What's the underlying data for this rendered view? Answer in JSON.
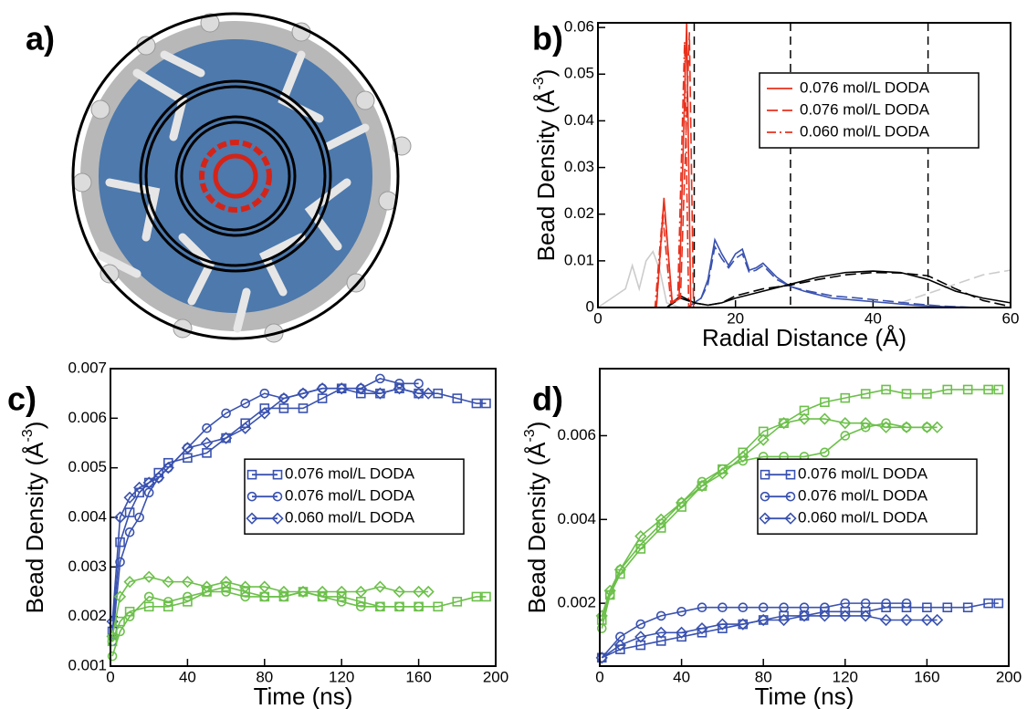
{
  "image_panel": {
    "label": "a)"
  },
  "chart_data": [
    {
      "type": "line",
      "label": "b)",
      "xlabel": "Radial Distance (Å)",
      "ylabel": [
        "Bead Density (Å",
        "-3",
        ")"
      ],
      "xlim": [
        0,
        60
      ],
      "ylim": [
        0,
        0.061
      ],
      "xticks": [
        0,
        20,
        40,
        60
      ],
      "yticks": [
        0,
        0.01,
        0.02,
        0.03,
        0.04,
        0.05,
        0.06
      ],
      "vlines": [
        14,
        28,
        48
      ],
      "legend": "upper right",
      "series": [
        {
          "color": "#cccccc",
          "dash": "solid",
          "x": [
            0,
            2,
            4,
            5,
            6,
            7,
            8,
            9,
            10,
            12
          ],
          "values": [
            0,
            0.002,
            0.004,
            0.009,
            0.004,
            0.01,
            0.012,
            0.008,
            0.001,
            0
          ]
        },
        {
          "color": "#cccccc",
          "dash": "dashed",
          "x": [
            44,
            48,
            52,
            56,
            60
          ],
          "values": [
            0.001,
            0.003,
            0.005,
            0.007,
            0.008
          ]
        },
        {
          "color": "#3a52b0",
          "dash": "solid",
          "x": [
            13,
            14,
            15,
            16,
            17,
            18,
            19,
            20,
            21,
            22,
            23,
            24,
            26,
            28,
            30,
            34,
            38,
            42,
            46,
            50,
            55,
            60
          ],
          "values": [
            0,
            0.001,
            0.002,
            0.006,
            0.0145,
            0.0115,
            0.009,
            0.0115,
            0.0125,
            0.008,
            0.0085,
            0.0095,
            0.0065,
            0.0045,
            0.0035,
            0.002,
            0.0015,
            0.001,
            0.0005,
            0.0002,
            0,
            0
          ]
        },
        {
          "color": "#3a52b0",
          "dash": "dashed",
          "x": [
            13,
            14,
            15,
            16,
            17,
            18,
            19,
            20,
            21,
            22,
            23,
            24,
            26,
            28,
            30,
            34,
            38,
            42,
            46,
            50,
            55,
            60
          ],
          "values": [
            0,
            0.001,
            0.002,
            0.005,
            0.013,
            0.0105,
            0.0085,
            0.0105,
            0.0115,
            0.0075,
            0.008,
            0.009,
            0.006,
            0.0045,
            0.0037,
            0.0025,
            0.002,
            0.0014,
            0.0008,
            0.0003,
            0,
            0
          ]
        },
        {
          "color": "#000000",
          "dash": "solid",
          "x": [
            10,
            12,
            14,
            16,
            18,
            20,
            24,
            28,
            32,
            36,
            40,
            44,
            48,
            52,
            56,
            60
          ],
          "values": [
            0,
            0.0025,
            0.001,
            0.0005,
            0.001,
            0.002,
            0.0035,
            0.005,
            0.0065,
            0.0075,
            0.0078,
            0.0075,
            0.006,
            0.0035,
            0.002,
            0.001
          ]
        },
        {
          "color": "#000000",
          "dash": "dashed",
          "x": [
            10,
            12,
            14,
            16,
            18,
            20,
            24,
            28,
            32,
            36,
            40,
            44,
            48,
            52,
            56,
            60
          ],
          "values": [
            0,
            0.002,
            0.001,
            0.0005,
            0.001,
            0.0025,
            0.004,
            0.0048,
            0.006,
            0.007,
            0.0075,
            0.0074,
            0.0068,
            0.004,
            0.0015,
            0.0002
          ]
        },
        {
          "name": "0.076 mol/L DODA",
          "color": "#e8301c",
          "dash": "solid",
          "x": [
            0,
            8.5,
            9.6,
            10.8,
            11.8,
            12.9,
            13.5,
            14.5,
            60
          ],
          "values": [
            0,
            0,
            0.0235,
            0.001,
            0.002,
            0.061,
            0,
            0,
            0
          ]
        },
        {
          "name": "0.076 mol/L DODA",
          "color": "#e8301c",
          "dash": "dashed",
          "x": [
            0,
            8.5,
            9.6,
            10.8,
            12,
            13.3,
            13.9,
            15,
            60
          ],
          "values": [
            0,
            0,
            0.022,
            0.001,
            0.002,
            0.059,
            0,
            0,
            0
          ]
        },
        {
          "name": "0.060 mol/L DODA",
          "color": "#e8301c",
          "dash": "dashdot",
          "x": [
            0,
            8.3,
            9.4,
            10.6,
            11.6,
            12.6,
            13.2,
            14.2,
            60
          ],
          "values": [
            0,
            0,
            0.02,
            0.001,
            0.002,
            0.057,
            0,
            0,
            0
          ]
        }
      ]
    },
    {
      "type": "line",
      "label": "c)",
      "xlabel": "Time (ns)",
      "ylabel": [
        "Bead Density (Å",
        "-3",
        ")"
      ],
      "xlim": [
        0,
        200
      ],
      "ylim": [
        0.001,
        0.007
      ],
      "xticks": [
        0,
        40,
        80,
        120,
        160,
        200
      ],
      "yticks": [
        0.001,
        0.002,
        0.003,
        0.004,
        0.005,
        0.006,
        0.007
      ],
      "legend": "center right",
      "series": [
        {
          "name": "0.076 mol/L DODA",
          "color": "#3a52b0",
          "marker": "square",
          "x": [
            1,
            5,
            10,
            15,
            20,
            25,
            30,
            40,
            50,
            60,
            70,
            80,
            90,
            100,
            110,
            120,
            130,
            140,
            150,
            160,
            170,
            180,
            190,
            195
          ],
          "values": [
            0.0017,
            0.0035,
            0.0041,
            0.0045,
            0.0047,
            0.0049,
            0.0051,
            0.0052,
            0.0053,
            0.0056,
            0.0059,
            0.0062,
            0.0062,
            0.0062,
            0.0064,
            0.0066,
            0.0065,
            0.0065,
            0.0066,
            0.0065,
            0.0065,
            0.0064,
            0.0063,
            0.0063
          ]
        },
        {
          "name": "0.076 mol/L DODA",
          "color": "#3a52b0",
          "marker": "circle",
          "x": [
            1,
            5,
            10,
            15,
            20,
            25,
            30,
            40,
            50,
            60,
            70,
            80,
            90,
            100,
            110,
            120,
            130,
            140,
            150,
            160
          ],
          "values": [
            0.0015,
            0.0031,
            0.0037,
            0.004,
            0.0045,
            0.0048,
            0.005,
            0.0054,
            0.0058,
            0.0061,
            0.0063,
            0.0065,
            0.0064,
            0.0065,
            0.0066,
            0.0066,
            0.0066,
            0.0068,
            0.0067,
            0.0067
          ]
        },
        {
          "name": "0.060 mol/L DODA",
          "color": "#3a52b0",
          "marker": "diamond",
          "x": [
            1,
            5,
            10,
            15,
            20,
            25,
            30,
            40,
            50,
            60,
            70,
            80,
            90,
            100,
            110,
            120,
            130,
            140,
            150,
            160,
            165
          ],
          "values": [
            0.0019,
            0.004,
            0.0044,
            0.0046,
            0.0047,
            0.0048,
            0.005,
            0.0054,
            0.0055,
            0.0056,
            0.0058,
            0.0061,
            0.0064,
            0.0065,
            0.0066,
            0.0066,
            0.0066,
            0.0065,
            0.0066,
            0.0065,
            0.0065
          ]
        },
        {
          "color": "#6cc04a",
          "marker": "square",
          "x": [
            1,
            5,
            10,
            20,
            30,
            40,
            50,
            60,
            70,
            80,
            90,
            100,
            110,
            120,
            130,
            140,
            150,
            160,
            170,
            180,
            190,
            195
          ],
          "values": [
            0.0015,
            0.0019,
            0.0021,
            0.0022,
            0.0022,
            0.0023,
            0.0025,
            0.0026,
            0.0025,
            0.0024,
            0.0024,
            0.0025,
            0.0024,
            0.0024,
            0.0023,
            0.0022,
            0.0022,
            0.0022,
            0.0022,
            0.0023,
            0.0024,
            0.0024
          ]
        },
        {
          "color": "#6cc04a",
          "marker": "circle",
          "x": [
            1,
            5,
            10,
            20,
            30,
            40,
            50,
            60,
            70,
            80,
            90,
            100,
            110,
            120,
            130,
            140,
            150,
            160
          ],
          "values": [
            0.0012,
            0.0017,
            0.002,
            0.0024,
            0.0023,
            0.0024,
            0.0025,
            0.0025,
            0.0024,
            0.0024,
            0.0024,
            0.0025,
            0.0024,
            0.0023,
            0.0022,
            0.0022,
            0.0022,
            0.0022
          ]
        },
        {
          "color": "#6cc04a",
          "marker": "diamond",
          "x": [
            1,
            5,
            10,
            20,
            30,
            40,
            50,
            60,
            70,
            80,
            90,
            100,
            110,
            120,
            130,
            140,
            150,
            160,
            165
          ],
          "values": [
            0.0016,
            0.0024,
            0.0027,
            0.0028,
            0.0027,
            0.0027,
            0.0026,
            0.0027,
            0.0026,
            0.0026,
            0.0025,
            0.0025,
            0.0025,
            0.0025,
            0.0025,
            0.0026,
            0.0025,
            0.0025,
            0.0025
          ]
        }
      ]
    },
    {
      "type": "line",
      "label": "d)",
      "xlabel": "Time (ns)",
      "ylabel": [
        "Bead Density (Å",
        "-3",
        ")"
      ],
      "xlim": [
        0,
        200
      ],
      "ylim": [
        0.0005,
        0.0076
      ],
      "xticks": [
        0,
        40,
        80,
        120,
        160,
        200
      ],
      "yticks": [
        0.002,
        0.004,
        0.006
      ],
      "legend": "center right",
      "series": [
        {
          "name": "0.076 mol/L DODA",
          "color": "#3a52b0",
          "marker": "square",
          "x": [
            1,
            10,
            20,
            30,
            40,
            50,
            60,
            70,
            80,
            90,
            100,
            110,
            120,
            130,
            140,
            150,
            160,
            170,
            180,
            190,
            195
          ],
          "values": [
            0.0007,
            0.0009,
            0.001,
            0.0011,
            0.0012,
            0.0013,
            0.0014,
            0.0015,
            0.0016,
            0.0017,
            0.0017,
            0.0018,
            0.0018,
            0.0018,
            0.0019,
            0.0019,
            0.0019,
            0.0019,
            0.0019,
            0.002,
            0.002
          ]
        },
        {
          "name": "0.076 mol/L DODA",
          "color": "#3a52b0",
          "marker": "circle",
          "x": [
            1,
            10,
            20,
            30,
            40,
            50,
            60,
            70,
            80,
            90,
            100,
            110,
            120,
            130,
            140,
            150
          ],
          "values": [
            0.0007,
            0.0012,
            0.0015,
            0.0017,
            0.0018,
            0.0019,
            0.0019,
            0.0019,
            0.0019,
            0.0019,
            0.0019,
            0.0019,
            0.002,
            0.002,
            0.002,
            0.002
          ]
        },
        {
          "name": "0.060 mol/L DODA",
          "color": "#3a52b0",
          "marker": "diamond",
          "x": [
            1,
            10,
            20,
            30,
            40,
            50,
            60,
            70,
            80,
            90,
            100,
            110,
            120,
            130,
            140,
            150,
            160,
            165
          ],
          "values": [
            0.0007,
            0.001,
            0.0012,
            0.0013,
            0.0013,
            0.0014,
            0.0015,
            0.0015,
            0.0016,
            0.0016,
            0.0017,
            0.0017,
            0.0017,
            0.0017,
            0.0016,
            0.0016,
            0.0016,
            0.0016
          ]
        },
        {
          "color": "#6cc04a",
          "marker": "square",
          "x": [
            1,
            5,
            10,
            20,
            30,
            40,
            50,
            60,
            70,
            80,
            90,
            100,
            110,
            120,
            130,
            140,
            150,
            160,
            170,
            180,
            190,
            195
          ],
          "values": [
            0.0016,
            0.0022,
            0.0027,
            0.0033,
            0.0038,
            0.0043,
            0.0048,
            0.0052,
            0.0056,
            0.0061,
            0.0063,
            0.0066,
            0.0068,
            0.0069,
            0.007,
            0.0071,
            0.007,
            0.007,
            0.0071,
            0.0071,
            0.0071,
            0.0071
          ]
        },
        {
          "color": "#6cc04a",
          "marker": "circle",
          "x": [
            1,
            5,
            10,
            20,
            30,
            40,
            50,
            60,
            70,
            80,
            90,
            100,
            110,
            120,
            130,
            140,
            150,
            160
          ],
          "values": [
            0.0014,
            0.0022,
            0.0028,
            0.0034,
            0.0039,
            0.0044,
            0.0049,
            0.0052,
            0.0054,
            0.0055,
            0.0055,
            0.0055,
            0.0056,
            0.006,
            0.0062,
            0.0063,
            0.0062,
            0.0062
          ]
        },
        {
          "color": "#6cc04a",
          "marker": "diamond",
          "x": [
            1,
            5,
            10,
            20,
            30,
            40,
            50,
            60,
            70,
            80,
            90,
            100,
            110,
            120,
            130,
            140,
            150,
            160,
            165
          ],
          "values": [
            0.0017,
            0.0023,
            0.0028,
            0.0036,
            0.004,
            0.0044,
            0.0048,
            0.0051,
            0.0055,
            0.0059,
            0.0063,
            0.0064,
            0.0064,
            0.0063,
            0.0063,
            0.0062,
            0.0062,
            0.0062,
            0.0062
          ]
        }
      ]
    }
  ]
}
